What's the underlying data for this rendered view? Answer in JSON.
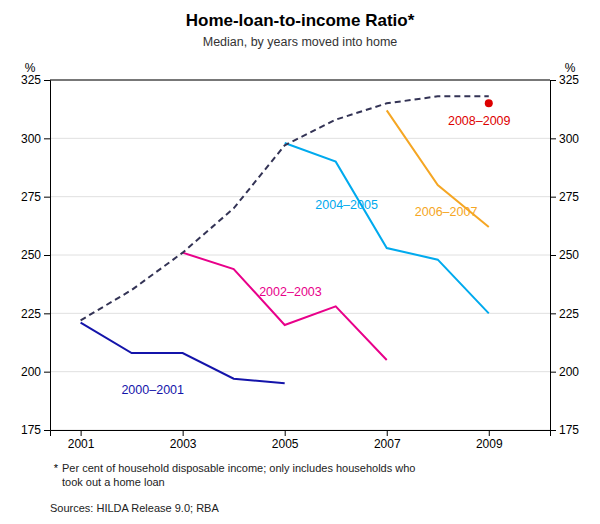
{
  "chart_data": {
    "type": "line",
    "title": "Home-loan-to-income Ratio*",
    "subtitle": "Median, by years moved into home",
    "ylabel": "%",
    "y2label": "%",
    "xlim": [
      2000.4,
      2010.2
    ],
    "xticks": [
      2001,
      2003,
      2005,
      2007,
      2009
    ],
    "ylim": [
      175,
      325
    ],
    "yticks": [
      175,
      200,
      225,
      250,
      275,
      300,
      325
    ],
    "y2lim": [
      175,
      325
    ],
    "y2ticks": [
      175,
      200,
      225,
      250,
      275,
      300,
      325
    ],
    "grid": "y",
    "series": [
      {
        "color": "#1414aa",
        "x": [
          2001,
          2002,
          2003,
          2004,
          2005
        ],
        "values": [
          221,
          208,
          208,
          197,
          195
        ],
        "line_style": "solid"
      },
      {
        "color": "#e8008a",
        "x": [
          2003,
          2004,
          2005,
          2006,
          2007
        ],
        "values": [
          251,
          244,
          220,
          228,
          205
        ],
        "line_style": "solid"
      },
      {
        "color": "#00aaee",
        "x": [
          2005,
          2006,
          2007,
          2008,
          2009
        ],
        "values": [
          298,
          290,
          253,
          248,
          225
        ],
        "line_style": "solid"
      },
      {
        "color": "#f5a623",
        "x": [
          2007,
          2008,
          2009
        ],
        "values": [
          312,
          280,
          262
        ],
        "line_style": "solid"
      },
      {
        "color": "#dd0000",
        "x": [
          2009
        ],
        "values": [
          315
        ],
        "line_style": "solid",
        "marker": "circle"
      },
      {
        "color": "#333355",
        "x": [
          2001,
          2002,
          2003,
          2004,
          2005,
          2006,
          2007,
          2008,
          2009
        ],
        "values": [
          222,
          235,
          251,
          270,
          297,
          308,
          315,
          318,
          318
        ],
        "line_style": "dashed"
      }
    ],
    "annotations": [
      {
        "text": "2000–2001",
        "x": 2001.8,
        "y": 192,
        "color": "#1414aa"
      },
      {
        "text": "2002–2003",
        "x": 2004.5,
        "y": 234,
        "color": "#e8008a"
      },
      {
        "text": "2004–2005",
        "x": 2005.6,
        "y": 271,
        "color": "#00aaee"
      },
      {
        "text": "2006–2007",
        "x": 2007.55,
        "y": 268,
        "color": "#f5a623"
      },
      {
        "text": "2008–2009",
        "x": 2008.2,
        "y": 307,
        "color": "#dd0000"
      }
    ],
    "footnote_marker": "*",
    "footnote": "Per cent of household disposable income; only includes households who\ntook out a home loan",
    "source": "Sources: HILDA Release 9.0; RBA"
  }
}
